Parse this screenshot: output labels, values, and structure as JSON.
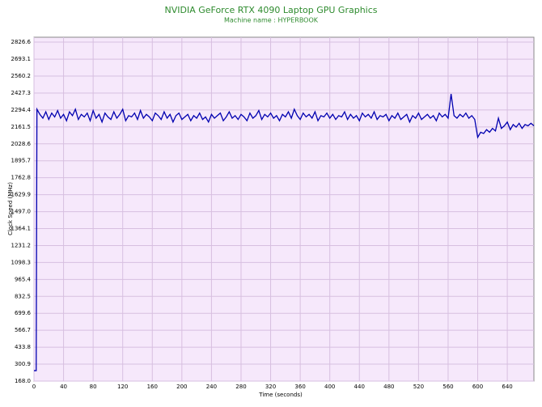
{
  "chart_data": {
    "type": "line",
    "title": "NVIDIA GeForce RTX 4090 Laptop GPU Graphics",
    "subtitle": "Machine name : HYPERBOOK",
    "y_label": "Clock Speed (MHz)",
    "x_label": "Time (seconds)",
    "grid": true,
    "xlim": [
      0,
      676
    ],
    "ylim": [
      168,
      2865
    ],
    "xticks": [
      0,
      40,
      80,
      120,
      160,
      200,
      240,
      280,
      320,
      360,
      400,
      440,
      480,
      520,
      560,
      600,
      640
    ],
    "yticks": [
      {
        "value": 168,
        "label": "168.0"
      },
      300.9,
      433.8,
      566.7,
      699.6,
      832.5,
      965.4,
      1098.3,
      1231.2,
      1364.1,
      {
        "value": 1497,
        "label": "1497.0"
      },
      1629.9,
      1762.8,
      1895.7,
      2028.6,
      2161.5,
      2294.4,
      2427.3,
      2560.2,
      2693.1,
      2826.6
    ],
    "x": [
      0,
      3,
      4,
      8,
      12,
      16,
      20,
      24,
      28,
      32,
      36,
      40,
      44,
      48,
      52,
      56,
      60,
      64,
      68,
      72,
      76,
      80,
      84,
      88,
      92,
      96,
      100,
      104,
      108,
      112,
      116,
      120,
      124,
      128,
      132,
      136,
      140,
      144,
      148,
      152,
      156,
      160,
      164,
      168,
      172,
      176,
      180,
      184,
      188,
      192,
      196,
      200,
      204,
      208,
      212,
      216,
      220,
      224,
      228,
      232,
      236,
      240,
      244,
      248,
      252,
      256,
      260,
      264,
      268,
      272,
      276,
      280,
      284,
      288,
      292,
      296,
      300,
      304,
      308,
      312,
      316,
      320,
      324,
      328,
      332,
      336,
      340,
      344,
      348,
      352,
      356,
      360,
      364,
      368,
      372,
      376,
      380,
      384,
      388,
      392,
      396,
      400,
      404,
      408,
      412,
      416,
      420,
      424,
      428,
      432,
      436,
      440,
      444,
      448,
      452,
      456,
      460,
      464,
      468,
      472,
      476,
      480,
      484,
      488,
      492,
      496,
      500,
      504,
      508,
      512,
      516,
      520,
      524,
      528,
      532,
      536,
      540,
      544,
      548,
      552,
      556,
      560,
      564,
      568,
      572,
      576,
      580,
      584,
      588,
      592,
      596,
      600,
      604,
      608,
      612,
      616,
      620,
      624,
      628,
      632,
      636,
      640,
      644,
      648,
      652,
      656,
      660,
      664,
      668,
      672,
      676
    ],
    "series": [
      {
        "name": "Clock Speed",
        "color": "#0000b0",
        "values": [
          250,
          250,
          2300,
          2260,
          2230,
          2280,
          2220,
          2270,
          2240,
          2290,
          2230,
          2260,
          2210,
          2280,
          2250,
          2300,
          2220,
          2260,
          2240,
          2270,
          2210,
          2290,
          2230,
          2260,
          2200,
          2270,
          2240,
          2220,
          2280,
          2230,
          2260,
          2300,
          2210,
          2250,
          2240,
          2270,
          2220,
          2290,
          2230,
          2260,
          2240,
          2210,
          2270,
          2250,
          2220,
          2280,
          2230,
          2260,
          2200,
          2250,
          2270,
          2220,
          2240,
          2260,
          2210,
          2250,
          2230,
          2270,
          2220,
          2240,
          2200,
          2260,
          2230,
          2250,
          2270,
          2210,
          2240,
          2280,
          2230,
          2250,
          2220,
          2260,
          2240,
          2210,
          2270,
          2230,
          2250,
          2290,
          2220,
          2260,
          2240,
          2270,
          2230,
          2250,
          2210,
          2260,
          2240,
          2280,
          2230,
          2300,
          2250,
          2220,
          2270,
          2240,
          2260,
          2230,
          2280,
          2210,
          2250,
          2240,
          2270,
          2230,
          2260,
          2220,
          2250,
          2240,
          2280,
          2220,
          2260,
          2230,
          2250,
          2210,
          2270,
          2240,
          2260,
          2230,
          2280,
          2220,
          2250,
          2240,
          2260,
          2210,
          2250,
          2230,
          2270,
          2220,
          2240,
          2260,
          2200,
          2250,
          2230,
          2270,
          2220,
          2240,
          2260,
          2230,
          2250,
          2210,
          2270,
          2240,
          2260,
          2230,
          2420,
          2250,
          2230,
          2260,
          2240,
          2270,
          2230,
          2250,
          2220,
          2080,
          2120,
          2110,
          2140,
          2120,
          2150,
          2130,
          2230,
          2150,
          2170,
          2200,
          2140,
          2180,
          2160,
          2190,
          2150,
          2180,
          2170,
          2190,
          2170
        ]
      }
    ]
  }
}
